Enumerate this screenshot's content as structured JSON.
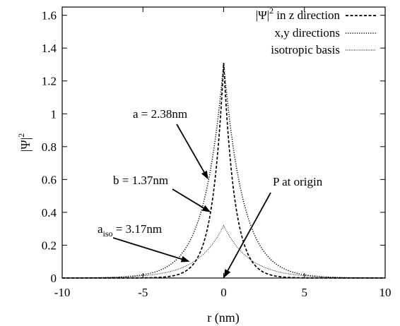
{
  "chart_data": {
    "type": "line",
    "title": "",
    "xlabel": "r (nm)",
    "ylabel_main": "|Ψ|",
    "ylabel_sup": "2",
    "xlim": [
      -10,
      10
    ],
    "ylim": [
      0,
      1.65
    ],
    "x_ticks": [
      -10,
      -5,
      0,
      5,
      10
    ],
    "x_tick_labels": [
      "-10",
      "-5",
      "0",
      "5",
      "10"
    ],
    "y_ticks": [
      0,
      0.2,
      0.4,
      0.6,
      0.8,
      1,
      1.2,
      1.4,
      1.6
    ],
    "y_tick_labels": [
      "0",
      "0.2",
      "0.4",
      "0.6",
      "0.8",
      "1",
      "1.2",
      "1.4",
      "1.6"
    ],
    "grid": false,
    "legend_position": "top-right",
    "series": [
      {
        "name": "|Ψ|² in z direction",
        "legend_main": "|Ψ|",
        "legend_sup": "2",
        "legend_rest": " in z direction",
        "style": "dashed",
        "shape": "exp(-2|r|/b)",
        "peak": 1.31,
        "decay_nm": 1.37,
        "x": [
          -10,
          -5,
          -4,
          -3,
          -2,
          -1.5,
          -1,
          -0.8,
          -0.6,
          -0.4,
          -0.2,
          0,
          0.2,
          0.4,
          0.6,
          0.8,
          1,
          1.5,
          2,
          3,
          4,
          5,
          10
        ],
        "y": [
          6e-07,
          0.0009,
          0.0038,
          0.016,
          0.071,
          0.15,
          0.304,
          0.4,
          0.54,
          0.73,
          0.97,
          1.31,
          0.97,
          0.73,
          0.54,
          0.4,
          0.304,
          0.15,
          0.071,
          0.016,
          0.0038,
          0.0009,
          6e-07
        ]
      },
      {
        "name": "x,y directions",
        "style": "dotted",
        "shape": "exp(-2|r|/a)",
        "peak": 1.31,
        "decay_nm": 2.38,
        "x": [
          -10,
          -6,
          -5,
          -4,
          -3,
          -2,
          -1.5,
          -1,
          -0.8,
          -0.6,
          -0.4,
          -0.2,
          0,
          0.2,
          0.4,
          0.6,
          0.8,
          1,
          1.5,
          2,
          3,
          4,
          5,
          6,
          10
        ],
        "y": [
          0.0003,
          0.0085,
          0.02,
          0.046,
          0.105,
          0.24,
          0.37,
          0.566,
          0.672,
          0.794,
          0.94,
          1.11,
          1.31,
          1.11,
          0.94,
          0.794,
          0.672,
          0.566,
          0.37,
          0.24,
          0.105,
          0.046,
          0.02,
          0.0085,
          0.0003
        ]
      },
      {
        "name": "isotropic basis",
        "style": "fine-dotted",
        "shape": "exp(-2|r|/a_iso)",
        "peak": 0.32,
        "decay_nm": 3.17,
        "x": [
          -10,
          -8,
          -6,
          -5,
          -4,
          -3,
          -2,
          -1,
          -0.5,
          0,
          0.5,
          1,
          2,
          3,
          4,
          5,
          6,
          8,
          10
        ],
        "y": [
          0.0006,
          0.0021,
          0.0072,
          0.0136,
          0.026,
          0.048,
          0.091,
          0.17,
          0.23,
          0.32,
          0.23,
          0.17,
          0.091,
          0.048,
          0.026,
          0.0136,
          0.0072,
          0.0021,
          0.0006
        ]
      }
    ],
    "annotations": [
      {
        "id": "a",
        "text": "a = 2.38nm",
        "target": [
          -0.95,
          0.6
        ]
      },
      {
        "id": "b",
        "text": "b = 1.37nm",
        "target": [
          -0.8,
          0.4
        ]
      },
      {
        "id": "aiso",
        "main": "a",
        "sub": "iso",
        "rest": " = 3.17nm",
        "target": [
          -2.1,
          0.1
        ]
      },
      {
        "id": "p",
        "text": "P at origin",
        "target": [
          0,
          0
        ]
      }
    ]
  }
}
